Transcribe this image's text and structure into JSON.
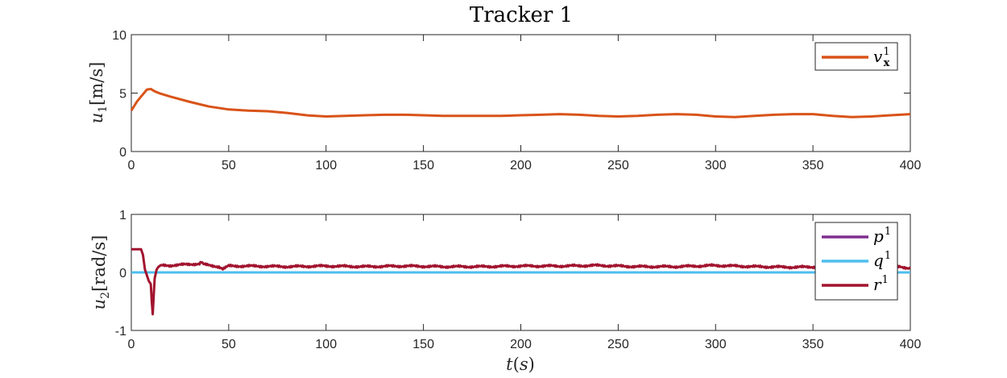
{
  "chart_data": {
    "title": "Tracker 1",
    "xlabel": "t(s)",
    "xlim": [
      0,
      400
    ],
    "xticks": [
      0,
      50,
      100,
      150,
      200,
      250,
      300,
      350,
      400
    ],
    "grid": false,
    "subplots": [
      {
        "type": "line",
        "ylabel": "u1[m/s]",
        "ylim": [
          0,
          10
        ],
        "yticks": [
          0,
          5,
          10
        ],
        "legend_position": "top-right",
        "series": [
          {
            "name": "v¹x",
            "legend_main": "v",
            "legend_sup": "1",
            "legend_sub": "x",
            "color": "#D95319",
            "x": [
              0,
              3,
              6,
              8,
              10,
              12,
              15,
              20,
              30,
              40,
              50,
              60,
              70,
              80,
              90,
              100,
              110,
              120,
              130,
              140,
              150,
              160,
              170,
              180,
              190,
              200,
              210,
              220,
              230,
              240,
              250,
              260,
              270,
              280,
              290,
              300,
              310,
              320,
              330,
              340,
              350,
              360,
              370,
              380,
              390,
              400
            ],
            "y": [
              3.5,
              4.3,
              4.9,
              5.3,
              5.35,
              5.15,
              4.95,
              4.7,
              4.25,
              3.85,
              3.6,
              3.5,
              3.45,
              3.3,
              3.1,
              3.0,
              3.05,
              3.1,
              3.15,
              3.15,
              3.1,
              3.05,
              3.05,
              3.05,
              3.05,
              3.1,
              3.15,
              3.2,
              3.15,
              3.05,
              3.0,
              3.05,
              3.15,
              3.2,
              3.15,
              3.0,
              2.95,
              3.05,
              3.15,
              3.2,
              3.2,
              3.05,
              2.95,
              3.0,
              3.1,
              3.2
            ]
          }
        ]
      },
      {
        "type": "line",
        "ylabel": "u2[rad/s]",
        "ylim": [
          -1,
          1
        ],
        "yticks": [
          -1,
          0,
          1
        ],
        "legend_position": "top-right",
        "series": [
          {
            "name": "p¹",
            "legend_main": "p",
            "legend_sup": "1",
            "color": "#7E2F8E",
            "x": [
              0,
              400
            ],
            "y": [
              0,
              0
            ]
          },
          {
            "name": "q¹",
            "legend_main": "q",
            "legend_sup": "1",
            "color": "#4DBEEE",
            "x": [
              0,
              400
            ],
            "y": [
              0,
              0
            ]
          },
          {
            "name": "r¹",
            "legend_main": "r",
            "legend_sup": "1",
            "color": "#A2142F",
            "x": [
              0,
              2,
              4,
              5,
              6,
              7,
              8,
              9,
              10,
              10.5,
              11,
              11.5,
              12,
              13,
              14,
              16,
              20,
              25,
              30,
              35,
              36,
              37,
              40,
              45,
              47,
              50,
              60,
              80,
              100,
              120,
              140,
              160,
              180,
              200,
              220,
              240,
              250,
              260,
              280,
              300,
              320,
              340,
              360,
              380,
              395,
              400
            ],
            "y": [
              0.4,
              0.4,
              0.4,
              0.4,
              0.3,
              0.05,
              -0.05,
              -0.15,
              -0.2,
              -0.5,
              -0.72,
              -0.4,
              -0.1,
              0.05,
              0.1,
              0.12,
              0.12,
              0.13,
              0.14,
              0.15,
              0.18,
              0.14,
              0.12,
              0.1,
              0.06,
              0.11,
              0.11,
              0.1,
              0.11,
              0.1,
              0.11,
              0.1,
              0.1,
              0.11,
              0.11,
              0.12,
              0.11,
              0.1,
              0.1,
              0.12,
              0.1,
              0.09,
              0.1,
              0.09,
              0.1,
              0.07
            ]
          }
        ]
      }
    ]
  }
}
